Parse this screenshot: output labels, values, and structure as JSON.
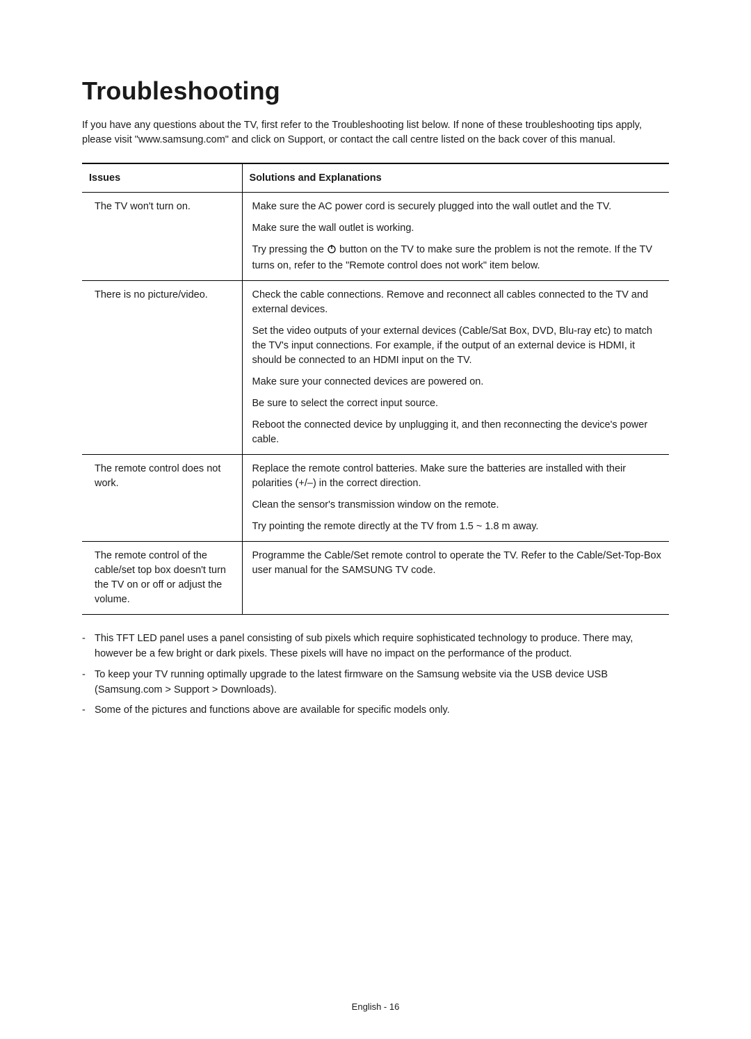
{
  "title": "Troubleshooting",
  "intro": "If you have any questions about the TV, first refer to the Troubleshooting list below. If none of these troubleshooting tips apply, please visit \"www.samsung.com\" and click on Support, or contact the call centre listed on the back cover of this manual.",
  "table": {
    "header_issues": "Issues",
    "header_solutions": "Solutions and Explanations",
    "rows": [
      {
        "issue": "The TV won't turn on.",
        "solutions": [
          "Make sure the AC power cord is securely plugged into the wall outlet and the TV.",
          "Make sure the wall outlet is working.",
          "__POWER__Try pressing the [P] button on the TV to make sure the problem is not the remote. If the TV turns on, refer to the \"Remote control does not work\" item below."
        ]
      },
      {
        "issue": "There is no picture/video.",
        "solutions": [
          "Check the cable connections. Remove and reconnect all cables connected to the TV and external devices.",
          "Set the video outputs of your external devices (Cable/Sat Box, DVD, Blu-ray etc) to match the TV's input connections. For example, if the output of an external device is HDMI, it should be connected to an HDMI input on the TV.",
          "Make sure your connected devices are powered on.",
          "Be sure to select the correct input source.",
          "Reboot the connected device by unplugging it, and then reconnecting the device's power cable."
        ]
      },
      {
        "issue": "The remote control does not work.",
        "solutions": [
          "Replace the remote control batteries. Make sure the batteries are installed with their polarities (+/–) in the correct direction.",
          "Clean the sensor's transmission window on the remote.",
          "Try pointing the remote directly at the TV from 1.5 ~ 1.8 m away."
        ]
      },
      {
        "issue": "The remote control of the cable/set top box doesn't turn the TV on or off or adjust the volume.",
        "solutions": [
          "Programme the Cable/Set remote control to operate the TV. Refer to the Cable/Set-Top-Box user manual for the SAMSUNG TV code."
        ]
      }
    ]
  },
  "notes": [
    "This TFT LED panel uses a panel consisting of sub pixels which require sophisticated technology to produce. There may, however be a few bright or dark pixels. These pixels will have no impact on the performance of the product.",
    "To keep your TV running optimally upgrade to the latest firmware on the Samsung website via the USB device USB (Samsung.com > Support > Downloads).",
    "Some of the pictures and functions above are available for specific models only."
  ],
  "footer": "English - 16",
  "power_icon_svg_pre": "Try pressing the ",
  "power_icon_svg_post": " button on the TV to make sure the problem is not the remote. If the TV turns on, refer to the \"Remote control does not work\" item below."
}
